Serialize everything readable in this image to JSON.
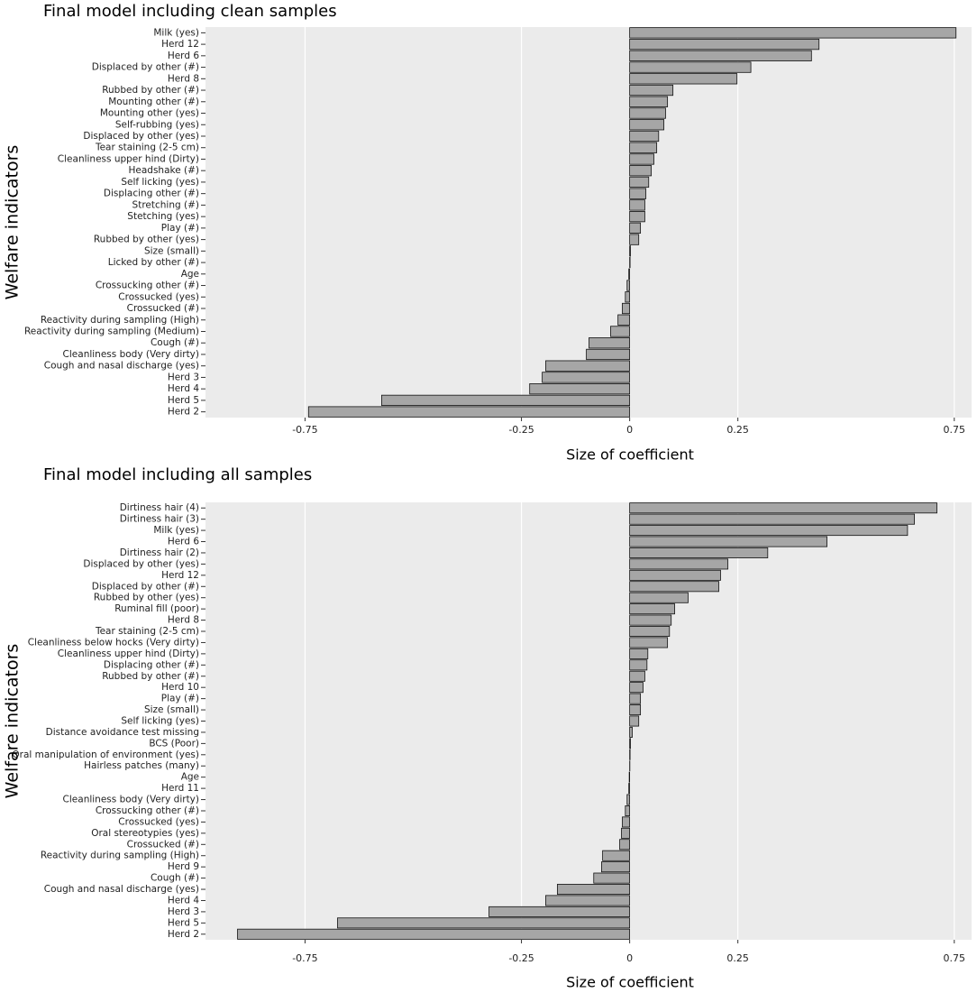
{
  "chart_data": [
    {
      "type": "bar",
      "orientation": "horizontal",
      "title": "Final model including clean samples",
      "xlabel": "Size of coefficient",
      "ylabel": "Welfare indicators",
      "color": "#a6a6a6",
      "grid": true,
      "categories": [
        "Milk (yes)",
        "Herd 12",
        "Herd 6",
        "Displaced by other (#)",
        "Herd 8",
        "Rubbed by other (#)",
        "Mounting other (#)",
        "Mounting other (yes)",
        "Self-rubbing (yes)",
        "Displaced by other (yes)",
        "Tear staining (2-5 cm)",
        "Cleanliness upper hind (Dirty)",
        "Headshake (#)",
        "Self licking (yes)",
        "Displacing other (#)",
        "Stretching (#)",
        "Stetching (yes)",
        "Play (#)",
        "Rubbed by other (yes)",
        "Size (small)",
        "Licked by other (#)",
        "Age",
        "Crossucking other (#)",
        "Crossucked (yes)",
        "Crossucked (#)",
        "Reactivity during sampling (High)",
        "Reactivity during sampling (Medium)",
        "Cough (#)",
        "Cleanliness body (Very dirty)",
        "Cough and nasal discharge (yes)",
        "Herd 3",
        "Herd 4",
        "Herd 5",
        "Herd 2"
      ],
      "values": [
        0.754,
        0.4375,
        0.42,
        0.28,
        0.248,
        0.1,
        0.0875,
        0.083,
        0.079,
        0.067,
        0.0625,
        0.056,
        0.05,
        0.044,
        0.0375,
        0.035,
        0.035,
        0.025,
        0.021,
        0.002,
        0.001,
        -0.002,
        -0.006,
        -0.01,
        -0.017,
        -0.027,
        -0.044,
        -0.094,
        -0.1,
        -0.194,
        -0.202,
        -0.231,
        -0.573,
        -0.742
      ],
      "xlim": [
        -0.98,
        0.79
      ],
      "xticks": [
        -0.75,
        -0.25,
        0,
        0.25,
        0.75
      ]
    },
    {
      "type": "bar",
      "orientation": "horizontal",
      "title": "Final model including all samples",
      "xlabel": "Size of coefficient",
      "ylabel": "Welfare indicators",
      "color": "#a6a6a6",
      "grid": true,
      "categories": [
        "Dirtiness hair (4)",
        "Dirtiness hair (3)",
        "Milk (yes)",
        "Herd 6",
        "Dirtiness hair (2)",
        "Displaced by other (yes)",
        "Herd 12",
        "Displaced by other (#)",
        "Rubbed by other (yes)",
        "Ruminal fill (poor)",
        "Herd 8",
        "Tear staining (2-5 cm)",
        "Cleanliness below hocks (Very dirty)",
        "Cleanliness upper hind (Dirty)",
        "Displacing other (#)",
        "Rubbed by other (#)",
        "Herd 10",
        "Play (#)",
        "Size (small)",
        "Self licking (yes)",
        "Distance avoidance test missing",
        "BCS (Poor)",
        "Oral manipulation of environment (yes)",
        "Hairless patches (many)",
        "Age",
        "Herd 11",
        "Cleanliness body (Very dirty)",
        "Crossucking other (#)",
        "Crossucked (yes)",
        "Oral stereotypies (yes)",
        "Crossucked (#)",
        "Reactivity during sampling (High)",
        "Herd 9",
        "Cough (#)",
        "Cough and nasal discharge (yes)",
        "Herd 4",
        "Herd 3",
        "Herd 5",
        "Herd 2"
      ],
      "values": [
        0.71,
        0.658,
        0.642,
        0.456,
        0.319,
        0.227,
        0.21,
        0.206,
        0.135,
        0.104,
        0.096,
        0.092,
        0.0875,
        0.042,
        0.04,
        0.035,
        0.031,
        0.025,
        0.025,
        0.021,
        0.006,
        0.002,
        0.001,
        0.0005,
        -0.001,
        -0.002,
        -0.006,
        -0.01,
        -0.017,
        -0.019,
        -0.023,
        -0.0625,
        -0.065,
        -0.083,
        -0.167,
        -0.194,
        -0.325,
        -0.675,
        -0.906
      ],
      "xlim": [
        -0.98,
        0.79
      ],
      "xticks": [
        -0.75,
        -0.25,
        0,
        0.25,
        0.75
      ]
    }
  ]
}
